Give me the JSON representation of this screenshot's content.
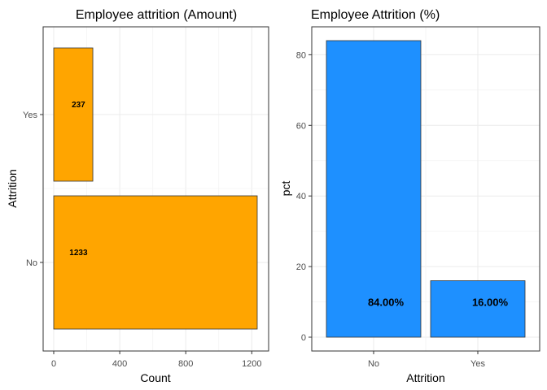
{
  "chart_data": [
    {
      "type": "bar",
      "orientation": "horizontal",
      "title": "Employee attrition (Amount)",
      "xlabel": "Count",
      "ylabel": "Attrition",
      "categories": [
        "No",
        "Yes"
      ],
      "values": [
        1233,
        237
      ],
      "data_labels": [
        "1233",
        "237"
      ],
      "xlim": [
        0,
        1300
      ],
      "xticks": [
        0,
        400,
        800,
        1200
      ],
      "xtick_labels": [
        "0",
        "400",
        "800",
        "1200"
      ],
      "color": "#FFA500",
      "grid": true,
      "legend": "none"
    },
    {
      "type": "bar",
      "orientation": "vertical",
      "title": "Employee Attrition (%)",
      "xlabel": "Attrition",
      "ylabel": "pct",
      "categories": [
        "No",
        "Yes"
      ],
      "values": [
        84.0,
        16.0
      ],
      "data_labels": [
        "84.00%",
        "16.00%"
      ],
      "ylim": [
        -4,
        88
      ],
      "yticks": [
        0,
        20,
        40,
        60,
        80
      ],
      "ytick_labels": [
        "0",
        "20",
        "40",
        "60",
        "80"
      ],
      "color": "#1E90FF",
      "grid": true,
      "legend": "none"
    }
  ]
}
